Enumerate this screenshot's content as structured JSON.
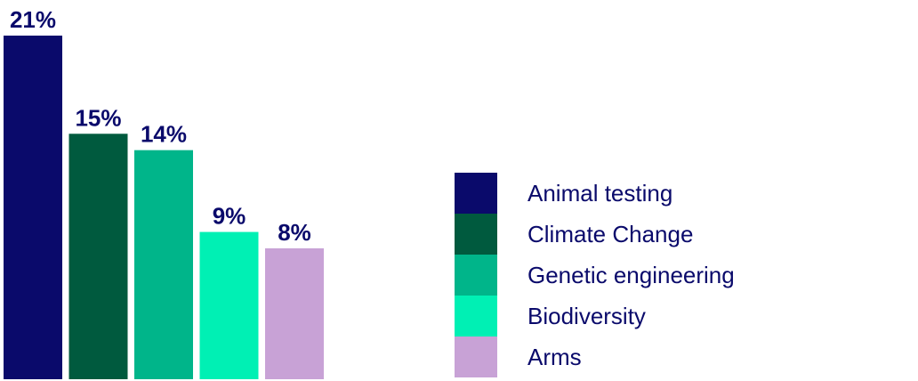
{
  "chart_data": {
    "type": "bar",
    "title": "",
    "xlabel": "",
    "ylabel": "",
    "ylim": [
      0,
      21
    ],
    "grid": false,
    "legend_position": "right",
    "categories": [
      "Animal testing",
      "Climate Change",
      "Genetic engineering",
      "Biodiversity",
      "Arms"
    ],
    "values": [
      21,
      15,
      14,
      9,
      8
    ],
    "value_labels": [
      "21%",
      "15%",
      "14%",
      "9%",
      "8%"
    ],
    "unit": "%",
    "colors": [
      "#0a0a6b",
      "#005a3e",
      "#00b58a",
      "#00f0b4",
      "#c8a2d6"
    ]
  },
  "legend": {
    "items": [
      {
        "label": "Animal testing",
        "color": "#0a0a6b"
      },
      {
        "label": "Climate Change",
        "color": "#005a3e"
      },
      {
        "label": "Genetic engineering",
        "color": "#00b58a"
      },
      {
        "label": "Biodiversity",
        "color": "#00f0b4"
      },
      {
        "label": "Arms",
        "color": "#c8a2d6"
      }
    ]
  }
}
